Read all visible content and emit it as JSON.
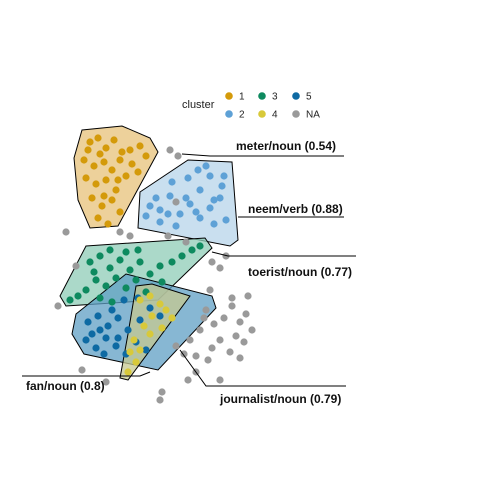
{
  "chart_data": {
    "type": "scatter",
    "title": "",
    "xlabel": "",
    "ylabel": "",
    "axes_visible": false,
    "grid": false,
    "legend": {
      "title": "cluster",
      "placement": "top",
      "entries": [
        {
          "key": "1",
          "label": "1",
          "color": "#D49A0A"
        },
        {
          "key": "3",
          "label": "3",
          "color": "#0E8A5F"
        },
        {
          "key": "5",
          "label": "5",
          "color": "#0E6AA3"
        },
        {
          "key": "2",
          "label": "2",
          "color": "#5EA1D6"
        },
        {
          "key": "4",
          "label": "4",
          "color": "#D8C93A"
        },
        {
          "key": "NA",
          "label": "NA",
          "color": "#9A9A9A"
        }
      ]
    },
    "clusters": [
      {
        "key": "1",
        "label": "meter/noun (0.54)",
        "color": "#D49A0A",
        "fill": "#E7C27A",
        "hull": [
          [
            82,
            130
          ],
          [
            122,
            126
          ],
          [
            150,
            138
          ],
          [
            158,
            152
          ],
          [
            118,
            226
          ],
          [
            90,
            228
          ],
          [
            78,
            200
          ],
          [
            74,
            158
          ]
        ],
        "points": [
          [
            90,
            142
          ],
          [
            98,
            138
          ],
          [
            106,
            148
          ],
          [
            114,
            140
          ],
          [
            122,
            152
          ],
          [
            130,
            150
          ],
          [
            140,
            146
          ],
          [
            146,
            156
          ],
          [
            84,
            160
          ],
          [
            94,
            166
          ],
          [
            104,
            162
          ],
          [
            112,
            170
          ],
          [
            120,
            160
          ],
          [
            86,
            178
          ],
          [
            96,
            184
          ],
          [
            106,
            180
          ],
          [
            116,
            190
          ],
          [
            126,
            176
          ],
          [
            92,
            198
          ],
          [
            102,
            206
          ],
          [
            112,
            200
          ],
          [
            120,
            212
          ],
          [
            98,
            218
          ],
          [
            108,
            224
          ],
          [
            132,
            164
          ],
          [
            138,
            172
          ],
          [
            88,
            150
          ],
          [
            100,
            154
          ],
          [
            118,
            180
          ],
          [
            104,
            196
          ]
        ]
      },
      {
        "key": "2",
        "label": "neem/verb (0.88)",
        "color": "#5EA1D6",
        "fill": "#B7D4EA",
        "hull": [
          [
            140,
            192
          ],
          [
            188,
            160
          ],
          [
            232,
            162
          ],
          [
            238,
            240
          ],
          [
            230,
            246
          ],
          [
            138,
            228
          ]
        ],
        "points": [
          [
            150,
            206
          ],
          [
            160,
            210
          ],
          [
            170,
            196
          ],
          [
            180,
            214
          ],
          [
            190,
            204
          ],
          [
            200,
            218
          ],
          [
            210,
            208
          ],
          [
            220,
            198
          ],
          [
            188,
            178
          ],
          [
            198,
            170
          ],
          [
            210,
            176
          ],
          [
            222,
            186
          ],
          [
            226,
            220
          ],
          [
            176,
            226
          ],
          [
            160,
            222
          ],
          [
            146,
            216
          ],
          [
            200,
            190
          ],
          [
            214,
            224
          ],
          [
            186,
            198
          ],
          [
            168,
            214
          ],
          [
            206,
            166
          ],
          [
            224,
            176
          ],
          [
            196,
            212
          ],
          [
            172,
            182
          ],
          [
            156,
            198
          ],
          [
            214,
            200
          ]
        ]
      },
      {
        "key": "3",
        "label": "toerist/noun (0.77)",
        "color": "#0E8A5F",
        "fill": "#8FCCB7",
        "hull": [
          [
            86,
            246
          ],
          [
            205,
            238
          ],
          [
            212,
            248
          ],
          [
            158,
            300
          ],
          [
            66,
            306
          ],
          [
            60,
            296
          ]
        ],
        "points": [
          [
            90,
            262
          ],
          [
            100,
            256
          ],
          [
            110,
            268
          ],
          [
            120,
            260
          ],
          [
            130,
            270
          ],
          [
            140,
            262
          ],
          [
            150,
            274
          ],
          [
            160,
            266
          ],
          [
            96,
            280
          ],
          [
            106,
            286
          ],
          [
            116,
            278
          ],
          [
            126,
            288
          ],
          [
            136,
            280
          ],
          [
            146,
            292
          ],
          [
            100,
            298
          ],
          [
            112,
            302
          ],
          [
            86,
            290
          ],
          [
            172,
            262
          ],
          [
            182,
            256
          ],
          [
            192,
            250
          ],
          [
            200,
            246
          ],
          [
            162,
            282
          ],
          [
            138,
            250
          ],
          [
            126,
            252
          ],
          [
            110,
            250
          ],
          [
            94,
            272
          ],
          [
            78,
            296
          ],
          [
            70,
            300
          ]
        ]
      },
      {
        "key": "5",
        "label": "fan/noun (0.8)",
        "color": "#0E6AA3",
        "fill": "#5F9FC4",
        "hull": [
          [
            76,
            314
          ],
          [
            126,
            274
          ],
          [
            212,
            296
          ],
          [
            216,
            308
          ],
          [
            158,
            370
          ],
          [
            84,
            354
          ],
          [
            72,
            334
          ]
        ],
        "points": [
          [
            88,
            322
          ],
          [
            98,
            316
          ],
          [
            108,
            326
          ],
          [
            118,
            318
          ],
          [
            128,
            330
          ],
          [
            86,
            340
          ],
          [
            96,
            348
          ],
          [
            106,
            338
          ],
          [
            116,
            346
          ],
          [
            126,
            354
          ],
          [
            136,
            342
          ],
          [
            146,
            350
          ],
          [
            100,
            330
          ],
          [
            112,
            310
          ],
          [
            124,
            300
          ],
          [
            138,
            298
          ],
          [
            150,
            308
          ],
          [
            160,
            316
          ],
          [
            140,
            320
          ],
          [
            92,
            334
          ],
          [
            104,
            354
          ],
          [
            118,
            338
          ]
        ]
      },
      {
        "key": "4",
        "label": "journalist/noun (0.79)",
        "color": "#D8C93A",
        "fill": "#C5C890",
        "hull": [
          [
            136,
            286
          ],
          [
            152,
            284
          ],
          [
            190,
            296
          ],
          [
            128,
            380
          ],
          [
            120,
            378
          ],
          [
            128,
            334
          ]
        ],
        "points": [
          [
            140,
            300
          ],
          [
            150,
            296
          ],
          [
            160,
            304
          ],
          [
            166,
            310
          ],
          [
            152,
            316
          ],
          [
            144,
            326
          ],
          [
            134,
            340
          ],
          [
            130,
            352
          ],
          [
            150,
            334
          ],
          [
            162,
            328
          ],
          [
            172,
            318
          ],
          [
            140,
            350
          ],
          [
            136,
            362
          ],
          [
            128,
            372
          ]
        ]
      }
    ],
    "na_points": [
      [
        170,
        150
      ],
      [
        178,
        156
      ],
      [
        66,
        232
      ],
      [
        76,
        266
      ],
      [
        212,
        262
      ],
      [
        220,
        268
      ],
      [
        226,
        256
      ],
      [
        210,
        290
      ],
      [
        232,
        298
      ],
      [
        224,
        318
      ],
      [
        240,
        322
      ],
      [
        246,
        314
      ],
      [
        236,
        336
      ],
      [
        252,
        330
      ],
      [
        220,
        340
      ],
      [
        212,
        348
      ],
      [
        230,
        352
      ],
      [
        240,
        358
      ],
      [
        208,
        360
      ],
      [
        196,
        356
      ],
      [
        184,
        354
      ],
      [
        176,
        346
      ],
      [
        190,
        340
      ],
      [
        200,
        330
      ],
      [
        214,
        324
      ],
      [
        248,
        296
      ],
      [
        244,
        342
      ],
      [
        160,
        400
      ],
      [
        162,
        392
      ],
      [
        204,
        318
      ],
      [
        196,
        372
      ],
      [
        188,
        380
      ],
      [
        120,
        232
      ],
      [
        130,
        236
      ],
      [
        168,
        236
      ],
      [
        58,
        306
      ],
      [
        82,
        370
      ],
      [
        106,
        382
      ],
      [
        176,
        202
      ],
      [
        186,
        242
      ],
      [
        232,
        306
      ],
      [
        206,
        310
      ],
      [
        220,
        380
      ]
    ],
    "labels": [
      {
        "key": "1",
        "text": "meter/noun (0.54)"
      },
      {
        "key": "2",
        "text": "neem/verb (0.88)"
      },
      {
        "key": "3",
        "text": "toerist/noun (0.77)"
      },
      {
        "key": "5",
        "text": "fan/noun (0.8)"
      },
      {
        "key": "4",
        "text": "journalist/noun (0.79)"
      }
    ]
  }
}
